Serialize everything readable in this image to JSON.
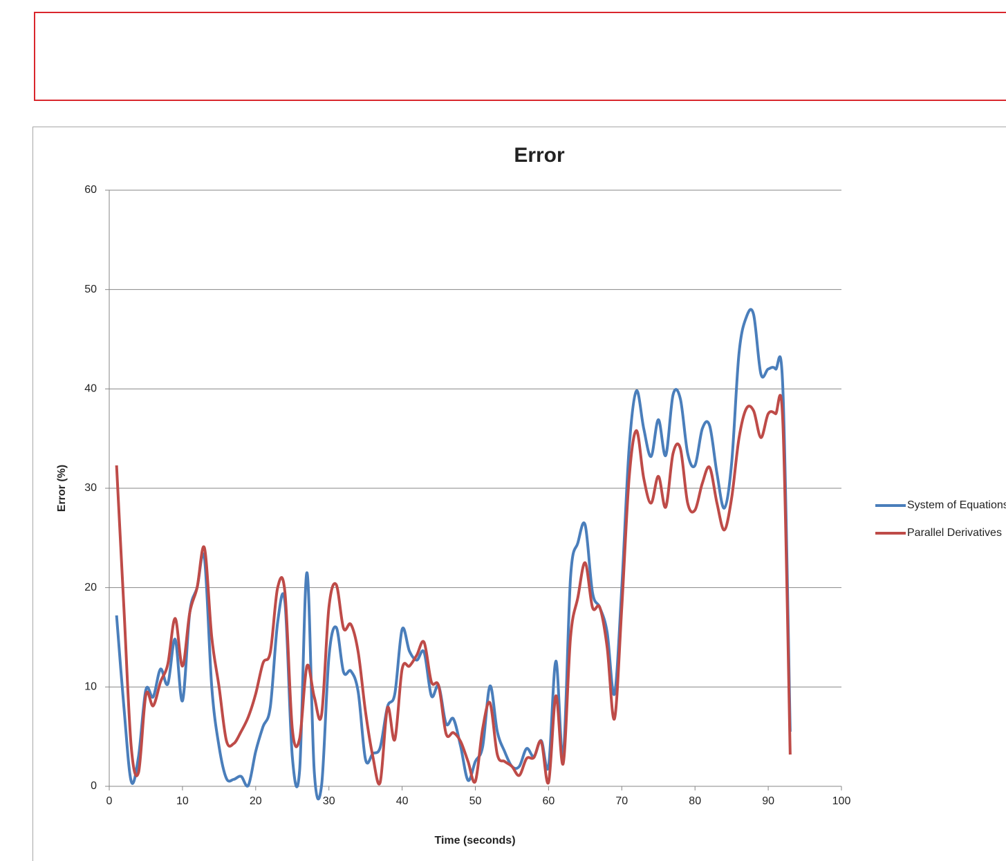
{
  "chart_data": {
    "type": "line",
    "title": "Error",
    "x_label": "Time (seconds)",
    "y_label": "Error (%)",
    "x": [
      1,
      2,
      3,
      4,
      5,
      6,
      7,
      8,
      9,
      10,
      11,
      12,
      13,
      14,
      15,
      16,
      17,
      18,
      19,
      20,
      21,
      22,
      23,
      24,
      25,
      26,
      27,
      28,
      29,
      30,
      31,
      32,
      33,
      34,
      35,
      36,
      37,
      38,
      39,
      40,
      41,
      42,
      43,
      44,
      45,
      46,
      47,
      48,
      49,
      50,
      51,
      52,
      53,
      54,
      55,
      56,
      57,
      58,
      59,
      60,
      61,
      62,
      63,
      64,
      65,
      66,
      67,
      68,
      69,
      70,
      71,
      72,
      73,
      74,
      75,
      76,
      77,
      78,
      79,
      80,
      81,
      82,
      83,
      84,
      85,
      86,
      87,
      88,
      89,
      90,
      91,
      92,
      93
    ],
    "series": [
      {
        "name": "System of Equations",
        "color": "#4a7ebb",
        "values": [
          17.2,
          8,
          0.5,
          3,
          9.7,
          9,
          11.8,
          10.3,
          14.8,
          8.6,
          17.5,
          20,
          23,
          10,
          4,
          0.8,
          0.7,
          1,
          0.1,
          3.5,
          6,
          8,
          16.5,
          18.5,
          3,
          1.6,
          21.5,
          1.5,
          0.1,
          13,
          16,
          11.5,
          11.6,
          9.5,
          2.7,
          3.3,
          3.9,
          8,
          9.3,
          15.8,
          13.6,
          12.7,
          13.5,
          9.1,
          10.1,
          6.3,
          6.8,
          4,
          0.6,
          2.5,
          4,
          10.1,
          5.5,
          3.5,
          2,
          2,
          3.8,
          3,
          4.6,
          2,
          12.6,
          3,
          21,
          24.5,
          26.3,
          19.5,
          18,
          15.5,
          9.3,
          20,
          34,
          39.8,
          36,
          33.2,
          36.9,
          33.3,
          39.4,
          39,
          33.5,
          32.3,
          36,
          36.3,
          31.5,
          28,
          32.5,
          43.5,
          47.2,
          47.5,
          41.5,
          42,
          42,
          40,
          5.5
        ]
      },
      {
        "name": "Parallel Derivatives",
        "color": "#be4b48",
        "values": [
          32.3,
          18,
          4,
          1.4,
          9.2,
          8.1,
          10.5,
          12.3,
          16.9,
          12.1,
          17.5,
          20,
          24,
          15,
          10,
          4.6,
          4.3,
          5.5,
          7,
          9.3,
          12.4,
          13.5,
          20,
          19.5,
          5.8,
          4.8,
          12.1,
          9,
          7.2,
          18,
          20.3,
          15.9,
          16.3,
          13.5,
          7.5,
          3,
          0.4,
          7.9,
          4.7,
          11.8,
          12.1,
          13.2,
          14.5,
          10.5,
          10.1,
          5.3,
          5.4,
          4.5,
          2.5,
          0.5,
          5.8,
          8.4,
          3.2,
          2.5,
          2,
          1.1,
          2.8,
          2.9,
          4.5,
          0.4,
          9.1,
          2.3,
          15,
          19,
          22.5,
          18,
          18,
          14,
          6.8,
          18,
          31,
          35.8,
          31,
          28.5,
          31.2,
          28.1,
          33.5,
          34,
          28.5,
          27.8,
          30.5,
          32.1,
          28.5,
          25.8,
          29,
          35,
          38,
          37.8,
          35.1,
          37.5,
          37.5,
          36.6,
          3.2
        ]
      }
    ],
    "xlim": [
      0,
      100
    ],
    "xticks": [
      0,
      10,
      20,
      30,
      40,
      50,
      60,
      70,
      80,
      90,
      100
    ],
    "ylim": [
      0,
      60
    ],
    "yticks": [
      0,
      10,
      20,
      30,
      40,
      50,
      60
    ],
    "grid": true,
    "legend": "right"
  }
}
